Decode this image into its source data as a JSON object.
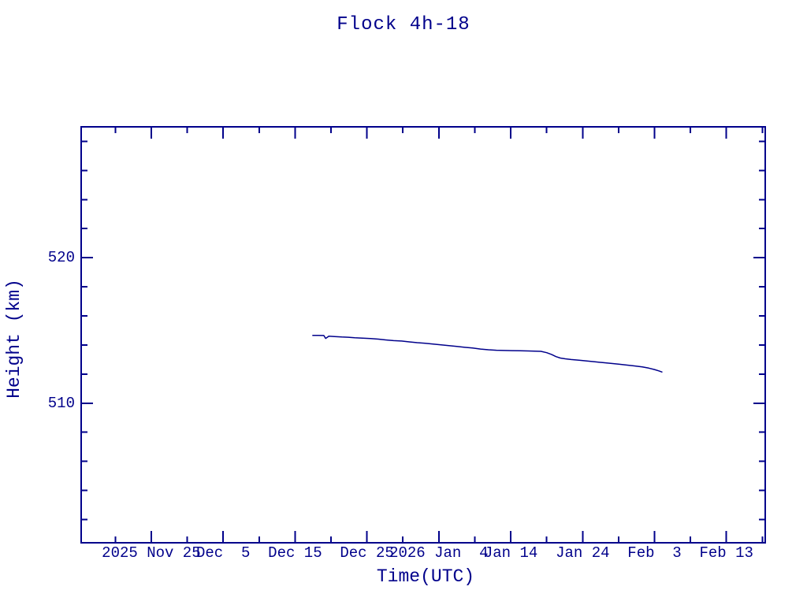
{
  "page": {
    "background_color": "#ffffff",
    "ink_color": "#00008B"
  },
  "chart_data": {
    "type": "line",
    "title": "Flock 4h-18",
    "xlabel": "Time(UTC)",
    "ylabel": "Height (km)",
    "line_color": "#00008B",
    "axis_color": "#00008B",
    "grid": "off",
    "legend": "none",
    "x_axis": {
      "unit": "days, day 0 = 2025 Nov 25",
      "range": [
        -9.75,
        85.4
      ],
      "major_ticks": [
        {
          "day": 0,
          "label": "2025 Nov 25"
        },
        {
          "day": 10,
          "label": "Dec  5"
        },
        {
          "day": 20,
          "label": "Dec 15"
        },
        {
          "day": 30,
          "label": "Dec 25"
        },
        {
          "day": 40,
          "label": "2026 Jan  4"
        },
        {
          "day": 50,
          "label": "Jan 14"
        },
        {
          "day": 60,
          "label": "Jan 24"
        },
        {
          "day": 70,
          "label": "Feb  3"
        },
        {
          "day": 80,
          "label": "Feb 13"
        }
      ],
      "minor_tick_days": [
        -5,
        5,
        15,
        25,
        35,
        45,
        55,
        65,
        75,
        85
      ]
    },
    "y_axis": {
      "unit": "km",
      "range": [
        500.4,
        529.0
      ],
      "major_ticks": [
        {
          "value": 510,
          "label": "510"
        },
        {
          "value": 520,
          "label": "520"
        }
      ],
      "minor_tick_values": [
        502,
        504,
        506,
        508,
        512,
        514,
        516,
        518,
        522,
        524,
        526,
        528
      ]
    },
    "series": [
      {
        "name": "Flock 4h-18 height",
        "points_day_km": [
          [
            22.4,
            514.66
          ],
          [
            23.2,
            514.66
          ],
          [
            24.0,
            514.65
          ],
          [
            24.25,
            514.45
          ],
          [
            24.7,
            514.6
          ],
          [
            25.5,
            514.58
          ],
          [
            26.5,
            514.55
          ],
          [
            27.4,
            514.53
          ],
          [
            28.3,
            514.5
          ],
          [
            29.4,
            514.47
          ],
          [
            30.5,
            514.44
          ],
          [
            31.6,
            514.4
          ],
          [
            32.6,
            514.35
          ],
          [
            33.7,
            514.3
          ],
          [
            34.8,
            514.27
          ],
          [
            35.9,
            514.21
          ],
          [
            37.0,
            514.16
          ],
          [
            38.1,
            514.12
          ],
          [
            39.2,
            514.06
          ],
          [
            40.3,
            514.01
          ],
          [
            41.4,
            513.96
          ],
          [
            42.5,
            513.9
          ],
          [
            43.6,
            513.84
          ],
          [
            44.7,
            513.79
          ],
          [
            45.8,
            513.72
          ],
          [
            46.9,
            513.67
          ],
          [
            48.0,
            513.64
          ],
          [
            49.1,
            513.62
          ],
          [
            50.2,
            513.61
          ],
          [
            51.3,
            513.6
          ],
          [
            52.4,
            513.59
          ],
          [
            53.3,
            513.58
          ],
          [
            54.2,
            513.56
          ],
          [
            55.0,
            513.47
          ],
          [
            55.7,
            513.34
          ],
          [
            56.3,
            513.2
          ],
          [
            56.9,
            513.1
          ],
          [
            57.6,
            513.05
          ],
          [
            58.4,
            513.0
          ],
          [
            59.5,
            512.95
          ],
          [
            60.6,
            512.9
          ],
          [
            61.7,
            512.84
          ],
          [
            62.8,
            512.79
          ],
          [
            63.9,
            512.74
          ],
          [
            65.0,
            512.68
          ],
          [
            66.1,
            512.62
          ],
          [
            67.2,
            512.56
          ],
          [
            68.3,
            512.49
          ],
          [
            69.2,
            512.41
          ],
          [
            70.0,
            512.31
          ],
          [
            70.6,
            512.22
          ],
          [
            71.1,
            512.13
          ]
        ]
      }
    ]
  }
}
